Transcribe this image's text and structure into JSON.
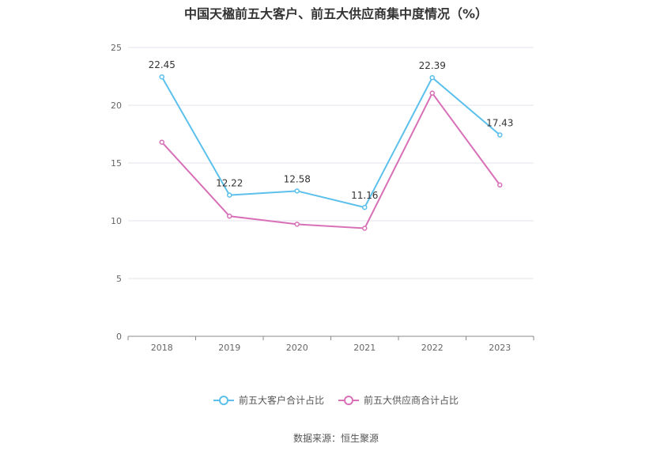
{
  "title": "中国天楹前五大客户、前五大供应商集中度情况（%）",
  "source": "数据来源：恒生聚源",
  "chart_data": {
    "type": "line",
    "title": "中国天楹前五大客户、前五大供应商集中度情况（%）",
    "categories": [
      "2018",
      "2019",
      "2020",
      "2021",
      "2022",
      "2023"
    ],
    "ylim": [
      0,
      25
    ],
    "yticks": [
      0,
      5,
      10,
      15,
      20,
      25
    ],
    "grid": true,
    "legend_position": "bottom",
    "series": [
      {
        "name": "前五大客户合计占比",
        "values": [
          22.45,
          12.22,
          12.58,
          11.16,
          22.39,
          17.43
        ],
        "labels": [
          "22.45",
          "12.22",
          "12.58",
          "11.16",
          "22.39",
          "17.43"
        ],
        "color": "#5bc0eb"
      },
      {
        "name": "前五大供应商合计占比",
        "values": [
          16.8,
          10.4,
          9.7,
          9.35,
          21.05,
          13.1
        ],
        "color": "#d870b8"
      }
    ]
  }
}
